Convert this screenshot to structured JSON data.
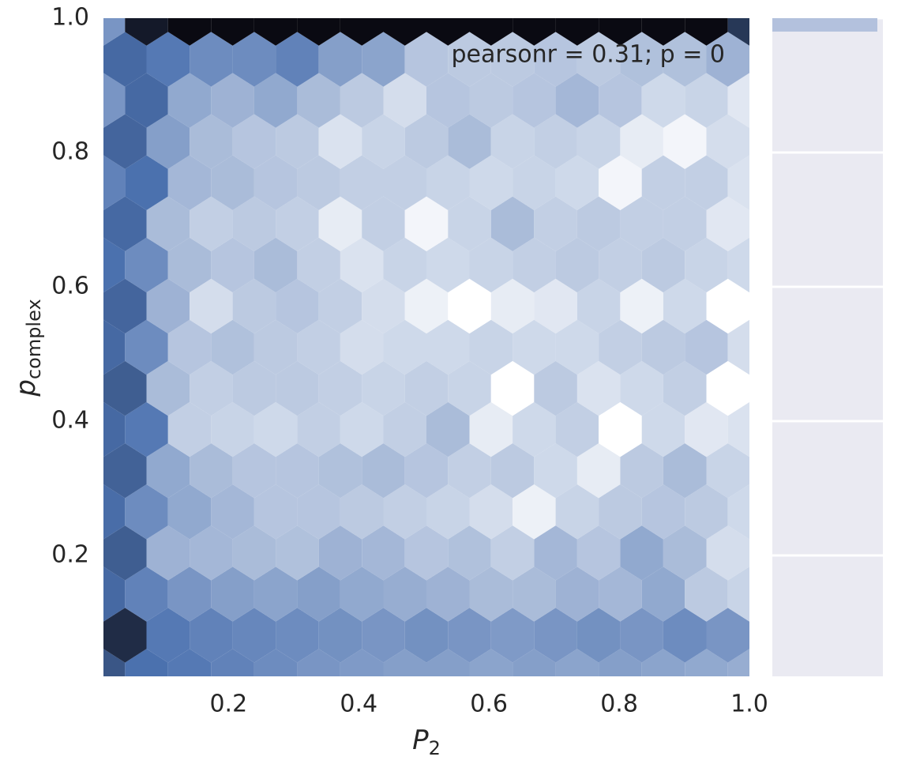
{
  "chart_data": {
    "type": "hexbin",
    "annotation": "pearsonr = 0.31; p = 0",
    "xlabel": {
      "base": "P",
      "sub": "2"
    },
    "ylabel": {
      "base": "p",
      "sub": "complex"
    },
    "xlim": [
      0.008,
      1.0
    ],
    "ylim": [
      0.02,
      1.0
    ],
    "xticks": [
      0.2,
      0.4,
      0.6,
      0.8,
      {
        "value": 1,
        "label": "1.0"
      }
    ],
    "yticks": [
      0.2,
      0.4,
      0.6,
      0.8,
      {
        "value": 1,
        "label": "1.0"
      }
    ],
    "cmap": [
      "#ffffff",
      "#4c72b0",
      "#0a0a12"
    ],
    "counts": [
      [
        220,
        150,
        140,
        130,
        120,
        110,
        105,
        100,
        100,
        95,
        100,
        95,
        100,
        95,
        90,
        85
      ],
      [
        330,
        140,
        130,
        125,
        120,
        115,
        110,
        115,
        110,
        105,
        110,
        115,
        110,
        120,
        110
      ],
      [
        170,
        130,
        110,
        100,
        95,
        100,
        90,
        85,
        80,
        70,
        70,
        80,
        75,
        90,
        55,
        45
      ],
      [
        200,
        80,
        75,
        70,
        65,
        80,
        75,
        60,
        65,
        50,
        75,
        60,
        90,
        70,
        35
      ],
      [
        160,
        120,
        90,
        75,
        60,
        60,
        55,
        50,
        45,
        35,
        15,
        45,
        55,
        60,
        55,
        40
      ],
      [
        190,
        90,
        70,
        60,
        60,
        65,
        70,
        60,
        50,
        55,
        40,
        20,
        55,
        70,
        45
      ],
      [
        170,
        140,
        50,
        45,
        40,
        50,
        40,
        50,
        70,
        20,
        40,
        50,
        0,
        40,
        25,
        30
      ],
      [
        200,
        70,
        50,
        55,
        55,
        50,
        45,
        50,
        45,
        0,
        55,
        30,
        40,
        50,
        0
      ],
      [
        170,
        120,
        60,
        65,
        55,
        50,
        35,
        40,
        40,
        45,
        40,
        40,
        50,
        55,
        60,
        35
      ],
      [
        180,
        80,
        35,
        55,
        60,
        50,
        35,
        15,
        0,
        20,
        25,
        45,
        15,
        40,
        0
      ],
      [
        150,
        120,
        70,
        60,
        70,
        50,
        30,
        45,
        40,
        45,
        50,
        55,
        50,
        55,
        45,
        40
      ],
      [
        170,
        70,
        50,
        55,
        50,
        20,
        50,
        10,
        45,
        70,
        50,
        55,
        50,
        50,
        25
      ],
      [
        130,
        150,
        75,
        70,
        60,
        55,
        50,
        50,
        45,
        40,
        45,
        40,
        10,
        50,
        50,
        30
      ],
      [
        180,
        100,
        70,
        60,
        55,
        30,
        45,
        55,
        70,
        45,
        50,
        45,
        20,
        10,
        35
      ],
      [
        110,
        170,
        90,
        80,
        90,
        70,
        55,
        35,
        60,
        55,
        60,
        75,
        60,
        40,
        45,
        25
      ],
      [
        170,
        140,
        120,
        120,
        130,
        100,
        95,
        60,
        55,
        55,
        60,
        55,
        65,
        65,
        80
      ],
      [
        110,
        380,
        420,
        420,
        420,
        420,
        420,
        420,
        420,
        420,
        420,
        420,
        420,
        420,
        420,
        300
      ]
    ],
    "marginal_y": {
      "bins": [
        0.98,
        1.0
      ],
      "counts": [
        0.95
      ],
      "xlim": [
        0,
        1
      ],
      "color": "#b3c1dd",
      "background": "#eaeaf2"
    }
  }
}
